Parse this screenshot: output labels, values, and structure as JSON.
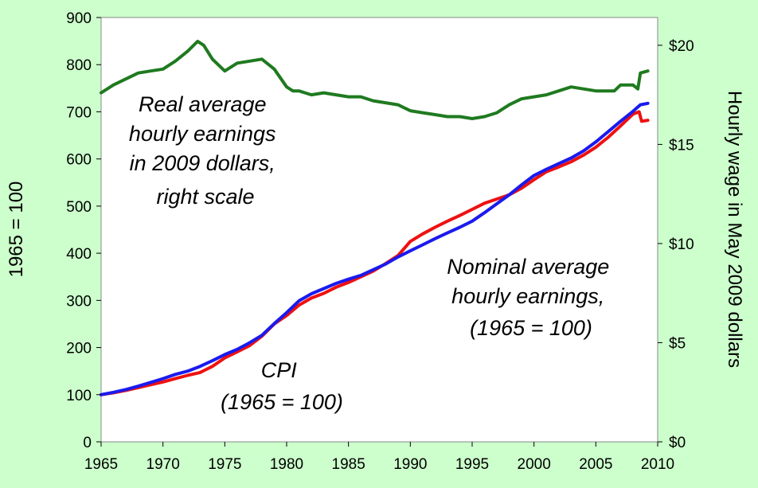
{
  "chart_data": {
    "type": "line",
    "title": "",
    "left_axis": {
      "label": "1965 = 100",
      "ylim": [
        0,
        900
      ],
      "ticks": [
        0,
        100,
        200,
        300,
        400,
        500,
        600,
        700,
        800,
        900
      ],
      "tick_labels": [
        "0",
        "100",
        "200",
        "300",
        "400",
        "500",
        "600",
        "700",
        "800",
        "900"
      ]
    },
    "right_axis": {
      "label": "Hourly wage in May 2009 dollars",
      "ylim": [
        0,
        21.4
      ],
      "ticks": [
        0,
        5,
        10,
        15,
        20
      ],
      "tick_labels": [
        "$0",
        "$5",
        "$10",
        "$15",
        "$20"
      ]
    },
    "x_axis": {
      "xlim": [
        1965,
        2010
      ],
      "ticks": [
        1965,
        1970,
        1975,
        1980,
        1985,
        1990,
        1995,
        2000,
        2005,
        2010
      ],
      "tick_labels": [
        "1965",
        "1970",
        "1975",
        "1980",
        "1985",
        "1990",
        "1995",
        "2000",
        "2005",
        "2010"
      ]
    },
    "grid": false,
    "legend": "none",
    "annotations": [
      {
        "id": "real",
        "lines": [
          "Real average",
          "hourly earnings",
          "in 2009 dollars,",
          "right scale"
        ]
      },
      {
        "id": "nominal",
        "lines": [
          "Nominal average",
          "hourly earnings,",
          "(1965 = 100)"
        ]
      },
      {
        "id": "cpi",
        "lines": [
          "CPI",
          "(1965 = 100)"
        ]
      }
    ],
    "series": [
      {
        "id": "real",
        "axis": "right",
        "color": "#1f7a1f",
        "x": [
          1965,
          1966,
          1967,
          1968,
          1969,
          1970,
          1971,
          1972,
          1972.8,
          1973.3,
          1974,
          1975,
          1976,
          1977,
          1978,
          1979,
          1980,
          1980.5,
          1981,
          1982,
          1983,
          1984,
          1985,
          1986,
          1987,
          1988,
          1989,
          1990,
          1991,
          1992,
          1993,
          1994,
          1995,
          1996,
          1997,
          1998,
          1999,
          2000,
          2001,
          2002,
          2003,
          2004,
          2005,
          2006,
          2006.5,
          2007,
          2008,
          2008.4,
          2008.6,
          2009.2
        ],
        "y": [
          17.6,
          18.0,
          18.3,
          18.6,
          18.7,
          18.8,
          19.2,
          19.7,
          20.2,
          20.0,
          19.3,
          18.7,
          19.1,
          19.2,
          19.3,
          18.8,
          17.9,
          17.7,
          17.7,
          17.5,
          17.6,
          17.5,
          17.4,
          17.4,
          17.2,
          17.1,
          17.0,
          16.7,
          16.6,
          16.5,
          16.4,
          16.4,
          16.3,
          16.4,
          16.6,
          17.0,
          17.3,
          17.4,
          17.5,
          17.7,
          17.9,
          17.8,
          17.7,
          17.7,
          17.7,
          18.0,
          18.0,
          17.8,
          18.6,
          18.7
        ]
      },
      {
        "id": "nominal",
        "axis": "left",
        "color": "#ee1111",
        "x": [
          1965,
          1966,
          1967,
          1968,
          1969,
          1970,
          1971,
          1972,
          1973,
          1974,
          1975,
          1976,
          1977,
          1978,
          1979,
          1980,
          1981,
          1982,
          1983,
          1984,
          1985,
          1986,
          1987,
          1988,
          1989,
          1990,
          1991,
          1992,
          1993,
          1994,
          1995,
          1996,
          1997,
          1998,
          1999,
          2000,
          2001,
          2002,
          2003,
          2004,
          2005,
          2006,
          2007,
          2008,
          2008.5,
          2008.7,
          2009.2
        ],
        "y": [
          100,
          104,
          109,
          115,
          121,
          127,
          134,
          141,
          147,
          160,
          178,
          191,
          204,
          224,
          250,
          268,
          290,
          305,
          315,
          328,
          338,
          350,
          362,
          378,
          395,
          425,
          441,
          455,
          468,
          480,
          493,
          506,
          515,
          524,
          538,
          556,
          573,
          583,
          594,
          608,
          625,
          646,
          670,
          695,
          700,
          680,
          682
        ]
      },
      {
        "id": "cpi",
        "axis": "left",
        "color": "#1a1aee",
        "x": [
          1965,
          1966,
          1967,
          1968,
          1969,
          1970,
          1971,
          1972,
          1973,
          1974,
          1975,
          1976,
          1977,
          1978,
          1979,
          1980,
          1981,
          1982,
          1983,
          1984,
          1985,
          1986,
          1987,
          1988,
          1989,
          1990,
          1991,
          1992,
          1993,
          1994,
          1995,
          1996,
          1997,
          1998,
          1999,
          2000,
          2001,
          2002,
          2003,
          2004,
          2005,
          2006,
          2007,
          2008,
          2008.6,
          2009.2
        ],
        "y": [
          100,
          105,
          111,
          118,
          126,
          134,
          143,
          150,
          160,
          172,
          185,
          196,
          210,
          226,
          251,
          274,
          299,
          314,
          325,
          336,
          345,
          353,
          365,
          377,
          392,
          405,
          418,
          431,
          443,
          455,
          468,
          486,
          505,
          524,
          545,
          565,
          578,
          590,
          602,
          617,
          636,
          658,
          680,
          701,
          715,
          718
        ]
      }
    ]
  }
}
